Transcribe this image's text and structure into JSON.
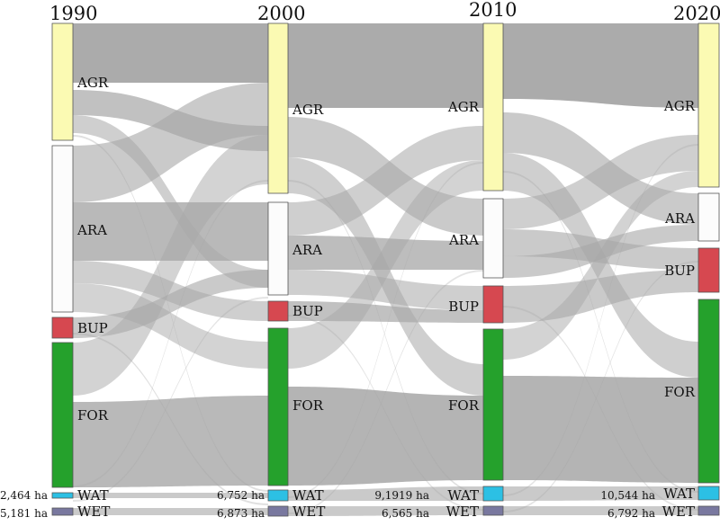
{
  "colors": {
    "AGR": "#fbfab3",
    "ARA": "#fcfcfc",
    "BUP": "#d64850",
    "FOR": "#25a12c",
    "WAT": "#2cc0e4",
    "WET": "#79789f",
    "flow": "#a7a7a7"
  },
  "years": [
    "1990",
    "2000",
    "2010",
    "2020"
  ],
  "classes": [
    "AGR",
    "ARA",
    "BUP",
    "FOR",
    "WAT",
    "WET"
  ],
  "area_labels": {
    "1990": {
      "WAT": "2,464 ha",
      "WET": "5,181 ha"
    },
    "2000": {
      "WAT": "6,752 ha",
      "WET": "6,873 ha"
    },
    "2010": {
      "WAT": "9,1919 ha",
      "WET": "6,565 ha"
    },
    "2020": {
      "WAT": "10,544 ha",
      "WET": "6,792 ha"
    }
  }
}
